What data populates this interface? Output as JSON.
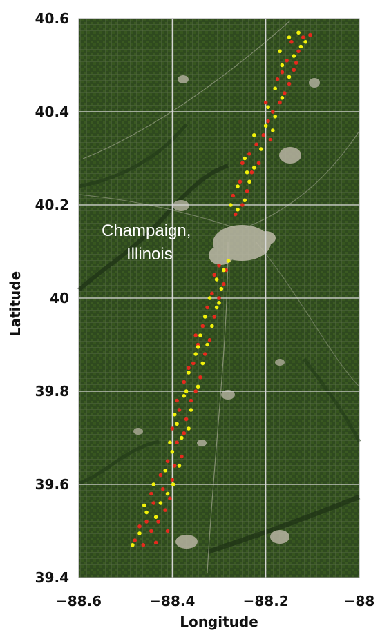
{
  "map": {
    "place_label_line1": "Champaign,",
    "place_label_line2": "Illinois",
    "colors": {
      "background": "#2f4a1f",
      "grid": "#d8d8d8",
      "marker_red": "#e52a1e",
      "marker_yellow": "#f2f20a",
      "urban": "#bdb9a8"
    }
  },
  "chart_data": {
    "type": "scatter",
    "xlabel": "Longitude",
    "ylabel": "Latitude",
    "xlim": [
      -88.6,
      -88.0
    ],
    "ylim": [
      39.4,
      40.6
    ],
    "x_ticks": [
      "−88.6",
      "−88.4",
      "−88.2",
      "−88"
    ],
    "y_ticks": [
      "39.4",
      "39.6",
      "39.8",
      "40",
      "40.2",
      "40.4",
      "40.6"
    ],
    "grid": true,
    "series": [
      {
        "color": "#e52a1e",
        "points": [
          [
            -88.48,
            39.48
          ],
          [
            -88.462,
            39.47
          ],
          [
            -88.445,
            39.5
          ],
          [
            -88.43,
            39.52
          ],
          [
            -88.415,
            39.545
          ],
          [
            -88.405,
            39.57
          ],
          [
            -88.455,
            39.52
          ],
          [
            -88.44,
            39.56
          ],
          [
            -88.42,
            39.59
          ],
          [
            -88.4,
            39.61
          ],
          [
            -88.395,
            39.64
          ],
          [
            -88.38,
            39.66
          ],
          [
            -88.41,
            39.65
          ],
          [
            -88.39,
            39.69
          ],
          [
            -88.375,
            39.71
          ],
          [
            -88.37,
            39.74
          ],
          [
            -88.385,
            39.76
          ],
          [
            -88.36,
            39.78
          ],
          [
            -88.35,
            39.8
          ],
          [
            -88.375,
            39.82
          ],
          [
            -88.34,
            39.83
          ],
          [
            -88.355,
            39.86
          ],
          [
            -88.33,
            39.88
          ],
          [
            -88.345,
            39.9
          ],
          [
            -88.32,
            39.91
          ],
          [
            -88.335,
            39.94
          ],
          [
            -88.31,
            39.96
          ],
          [
            -88.325,
            39.98
          ],
          [
            -88.3,
            40.0
          ],
          [
            -88.29,
            40.03
          ],
          [
            -88.31,
            40.05
          ],
          [
            -88.3,
            40.07
          ],
          [
            -88.265,
            40.18
          ],
          [
            -88.25,
            40.2
          ],
          [
            -88.24,
            40.23
          ],
          [
            -88.255,
            40.25
          ],
          [
            -88.23,
            40.27
          ],
          [
            -88.215,
            40.29
          ],
          [
            -88.235,
            40.31
          ],
          [
            -88.22,
            40.33
          ],
          [
            -88.205,
            40.35
          ],
          [
            -88.195,
            40.38
          ],
          [
            -88.185,
            40.4
          ],
          [
            -88.17,
            40.42
          ],
          [
            -88.16,
            40.44
          ],
          [
            -88.15,
            40.46
          ],
          [
            -88.175,
            40.47
          ],
          [
            -88.14,
            40.49
          ],
          [
            -88.155,
            40.51
          ],
          [
            -88.13,
            40.53
          ],
          [
            -88.145,
            40.55
          ],
          [
            -88.12,
            40.56
          ],
          [
            -88.105,
            40.565
          ],
          [
            -88.135,
            40.505
          ],
          [
            -88.165,
            40.485
          ],
          [
            -88.2,
            40.42
          ],
          [
            -88.19,
            40.34
          ],
          [
            -88.25,
            40.29
          ],
          [
            -88.27,
            40.22
          ],
          [
            -88.285,
            40.06
          ],
          [
            -88.315,
            40.01
          ],
          [
            -88.35,
            39.92
          ],
          [
            -88.365,
            39.85
          ],
          [
            -88.39,
            39.78
          ],
          [
            -88.4,
            39.72
          ],
          [
            -88.425,
            39.62
          ],
          [
            -88.445,
            39.58
          ],
          [
            -88.47,
            39.51
          ],
          [
            -88.435,
            39.475
          ],
          [
            -88.41,
            39.5
          ]
        ]
      },
      {
        "color": "#f2f20a",
        "points": [
          [
            -88.47,
            39.495
          ],
          [
            -88.455,
            39.54
          ],
          [
            -88.435,
            39.53
          ],
          [
            -88.425,
            39.56
          ],
          [
            -88.41,
            39.58
          ],
          [
            -88.398,
            39.6
          ],
          [
            -88.415,
            39.63
          ],
          [
            -88.385,
            39.64
          ],
          [
            -88.4,
            39.67
          ],
          [
            -88.38,
            39.7
          ],
          [
            -88.365,
            39.72
          ],
          [
            -88.39,
            39.73
          ],
          [
            -88.36,
            39.76
          ],
          [
            -88.375,
            39.79
          ],
          [
            -88.345,
            39.81
          ],
          [
            -88.365,
            39.84
          ],
          [
            -88.335,
            39.86
          ],
          [
            -88.35,
            39.88
          ],
          [
            -88.325,
            39.9
          ],
          [
            -88.34,
            39.92
          ],
          [
            -88.315,
            39.94
          ],
          [
            -88.33,
            39.96
          ],
          [
            -88.305,
            39.98
          ],
          [
            -88.32,
            40.0
          ],
          [
            -88.295,
            40.02
          ],
          [
            -88.305,
            40.04
          ],
          [
            -88.29,
            40.06
          ],
          [
            -88.26,
            40.19
          ],
          [
            -88.245,
            40.21
          ],
          [
            -88.26,
            40.24
          ],
          [
            -88.235,
            40.25
          ],
          [
            -88.225,
            40.28
          ],
          [
            -88.245,
            40.3
          ],
          [
            -88.21,
            40.32
          ],
          [
            -88.225,
            40.35
          ],
          [
            -88.2,
            40.37
          ],
          [
            -88.18,
            40.39
          ],
          [
            -88.195,
            40.41
          ],
          [
            -88.165,
            40.43
          ],
          [
            -88.18,
            40.45
          ],
          [
            -88.15,
            40.475
          ],
          [
            -88.165,
            40.5
          ],
          [
            -88.14,
            40.52
          ],
          [
            -88.125,
            40.54
          ],
          [
            -88.15,
            40.56
          ],
          [
            -88.13,
            40.57
          ],
          [
            -88.115,
            40.55
          ],
          [
            -88.17,
            40.53
          ],
          [
            -88.185,
            40.36
          ],
          [
            -88.24,
            40.27
          ],
          [
            -88.275,
            40.2
          ],
          [
            -88.28,
            40.08
          ],
          [
            -88.3,
            39.99
          ],
          [
            -88.345,
            39.895
          ],
          [
            -88.37,
            39.8
          ],
          [
            -88.395,
            39.75
          ],
          [
            -88.405,
            39.69
          ],
          [
            -88.44,
            39.6
          ],
          [
            -88.46,
            39.555
          ],
          [
            -88.485,
            39.47
          ]
        ]
      }
    ]
  }
}
